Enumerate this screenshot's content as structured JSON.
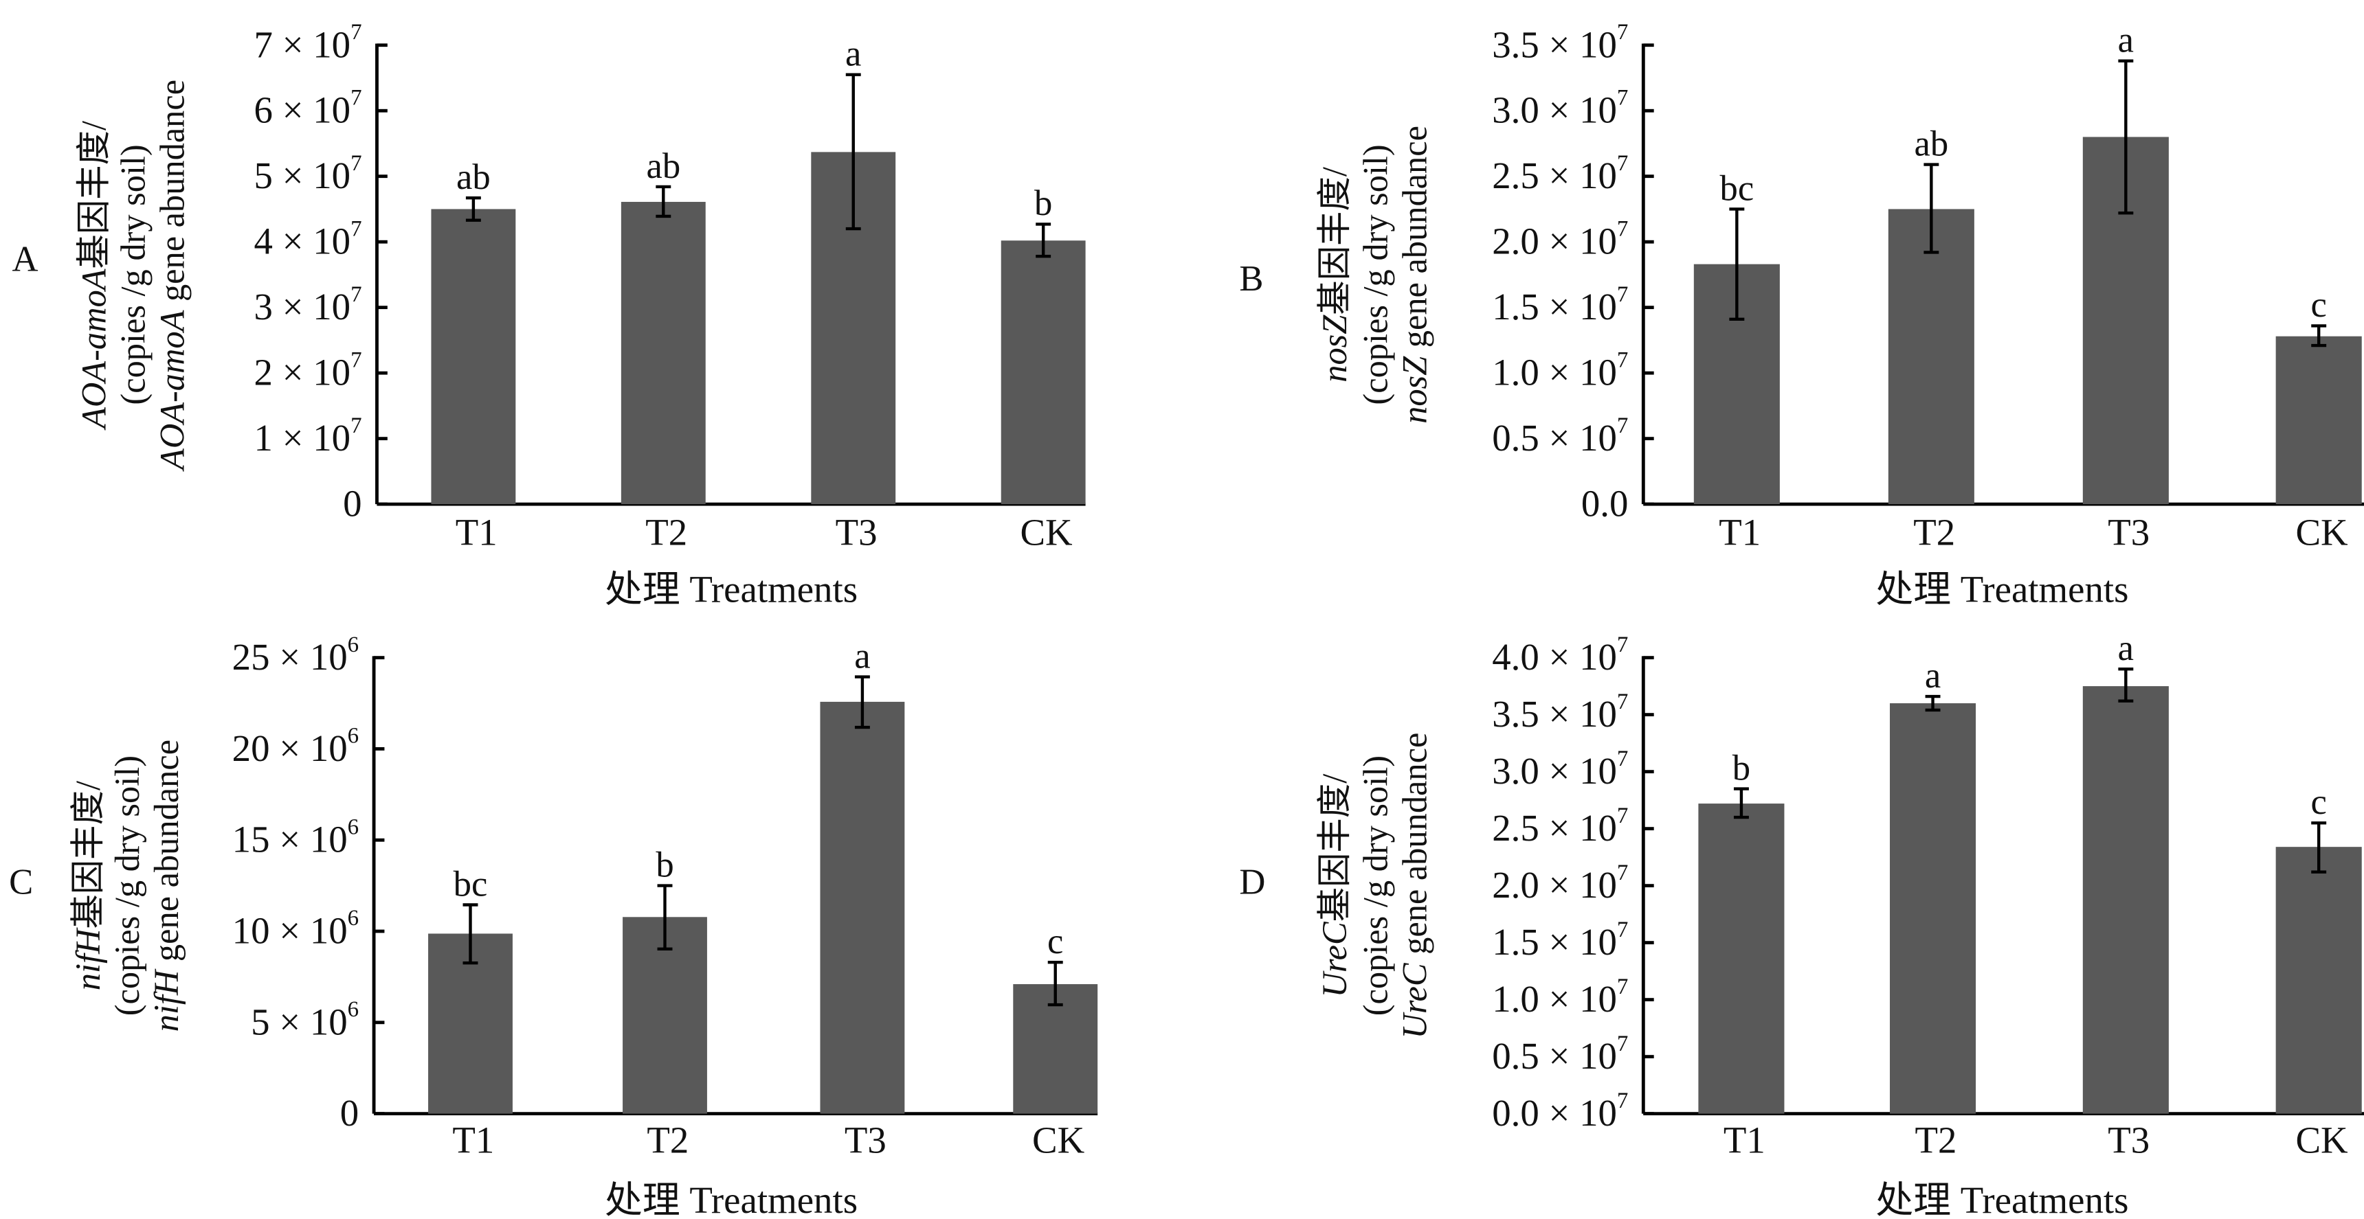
{
  "chart_data": [
    {
      "type": "bar",
      "panel": "A",
      "title": "",
      "ylabel_lines": [
        "AOA-amoA基因丰度/",
        "(copies /g dry soil)",
        "AOA-amoA gene abundance"
      ],
      "xlabel": "处理 Treatments",
      "categories": [
        "T1",
        "T2",
        "T3",
        "CK"
      ],
      "values": [
        45000000.0,
        46100000.0,
        53700000.0,
        40200000.0
      ],
      "error_low": [
        43300000.0,
        43900000.0,
        42000000.0,
        37800000.0
      ],
      "error_high": [
        46700000.0,
        48400000.0,
        65500000.0,
        42700000.0
      ],
      "significance": [
        "ab",
        "ab",
        "a",
        "b"
      ],
      "ylim": [
        0,
        70000000.0
      ],
      "yticks": [
        {
          "value": 0,
          "label": "0"
        },
        {
          "value": 10000000.0,
          "label": "1 × 10",
          "exp": "7"
        },
        {
          "value": 20000000.0,
          "label": "2 × 10",
          "exp": "7"
        },
        {
          "value": 30000000.0,
          "label": "3 × 10",
          "exp": "7"
        },
        {
          "value": 40000000.0,
          "label": "4 × 10",
          "exp": "7"
        },
        {
          "value": 50000000.0,
          "label": "5 × 10",
          "exp": "7"
        },
        {
          "value": 60000000.0,
          "label": "6 × 10",
          "exp": "7"
        },
        {
          "value": 70000000.0,
          "label": "7 × 10",
          "exp": "7"
        }
      ],
      "grid": false,
      "bar_color": "#595959"
    },
    {
      "type": "bar",
      "panel": "B",
      "title": "",
      "ylabel_lines": [
        "nosZ基因丰度/",
        "(copies /g dry soil)",
        "nosZ gene abundance"
      ],
      "xlabel": "处理 Treatments",
      "categories": [
        "T1",
        "T2",
        "T3",
        "CK"
      ],
      "values": [
        18300000.0,
        22500000.0,
        28000000.0,
        12800000.0
      ],
      "error_low": [
        14100000.0,
        19200000.0,
        22200000.0,
        12100000.0
      ],
      "error_high": [
        22500000.0,
        25900000.0,
        33800000.0,
        13600000.0
      ],
      "significance": [
        "bc",
        "ab",
        "a",
        "c"
      ],
      "ylim": [
        0,
        35000000.0
      ],
      "yticks": [
        {
          "value": 0,
          "label": "0.0"
        },
        {
          "value": 5000000.0,
          "label": "0.5 × 10",
          "exp": "7"
        },
        {
          "value": 10000000.0,
          "label": "1.0 × 10",
          "exp": "7"
        },
        {
          "value": 15000000.0,
          "label": "1.5 × 10",
          "exp": "7"
        },
        {
          "value": 20000000.0,
          "label": "2.0 × 10",
          "exp": "7"
        },
        {
          "value": 25000000.0,
          "label": "2.5 × 10",
          "exp": "7"
        },
        {
          "value": 30000000.0,
          "label": "3.0 × 10",
          "exp": "7"
        },
        {
          "value": 35000000.0,
          "label": "3.5 × 10",
          "exp": "7"
        }
      ],
      "grid": false,
      "bar_color": "#595959"
    },
    {
      "type": "bar",
      "panel": "C",
      "title": "",
      "ylabel_lines": [
        "nifH基因丰度/",
        "(copies /g dry soil)",
        "nifH gene abundance"
      ],
      "xlabel": "处理 Treatments",
      "categories": [
        "T1",
        "T2",
        "T3",
        "CK"
      ],
      "values": [
        9870000.0,
        10780000.0,
        22580000.0,
        7100000.0
      ],
      "error_low": [
        8260000.0,
        9030000.0,
        21180000.0,
        5970000.0
      ],
      "error_high": [
        11450000.0,
        12500000.0,
        23950000.0,
        8300000.0
      ],
      "significance": [
        "bc",
        "b",
        "a",
        "c"
      ],
      "ylim": [
        0,
        25000000.0
      ],
      "yticks": [
        {
          "value": 0,
          "label": "0"
        },
        {
          "value": 5000000.0,
          "label": "5 × 10",
          "exp": "6"
        },
        {
          "value": 10000000.0,
          "label": "10 × 10",
          "exp": "6"
        },
        {
          "value": 15000000.0,
          "label": "15 × 10",
          "exp": "6"
        },
        {
          "value": 20000000.0,
          "label": "20 × 10",
          "exp": "6"
        },
        {
          "value": 25000000.0,
          "label": "25 × 10",
          "exp": "6"
        }
      ],
      "grid": false,
      "bar_color": "#595959"
    },
    {
      "type": "bar",
      "panel": "D",
      "title": "",
      "ylabel_lines": [
        "UreC基因丰度/",
        "(copies /g dry soil)",
        "UreC gene abundance"
      ],
      "xlabel": "处理 Treatments",
      "categories": [
        "T1",
        "T2",
        "T3",
        "CK"
      ],
      "values": [
        27200000.0,
        36000000.0,
        37500000.0,
        23400000.0
      ],
      "error_low": [
        26000000.0,
        35400000.0,
        36200000.0,
        21200000.0
      ],
      "error_high": [
        28500000.0,
        36600000.0,
        39000000.0,
        25500000.0
      ],
      "significance": [
        "b",
        "a",
        "a",
        "c"
      ],
      "ylim": [
        0,
        40000000.0
      ],
      "yticks": [
        {
          "value": 0,
          "label": "0.0 × 10",
          "exp": "7"
        },
        {
          "value": 5000000.0,
          "label": "0.5 × 10",
          "exp": "7"
        },
        {
          "value": 10000000.0,
          "label": "1.0 × 10",
          "exp": "7"
        },
        {
          "value": 15000000.0,
          "label": "1.5 × 10",
          "exp": "7"
        },
        {
          "value": 20000000.0,
          "label": "2.0 × 10",
          "exp": "7"
        },
        {
          "value": 25000000.0,
          "label": "2.5 × 10",
          "exp": "7"
        },
        {
          "value": 30000000.0,
          "label": "3.0 × 10",
          "exp": "7"
        },
        {
          "value": 35000000.0,
          "label": "3.5 × 10",
          "exp": "7"
        },
        {
          "value": 40000000.0,
          "label": "4.0 × 10",
          "exp": "7"
        }
      ],
      "grid": false,
      "bar_color": "#595959"
    }
  ]
}
